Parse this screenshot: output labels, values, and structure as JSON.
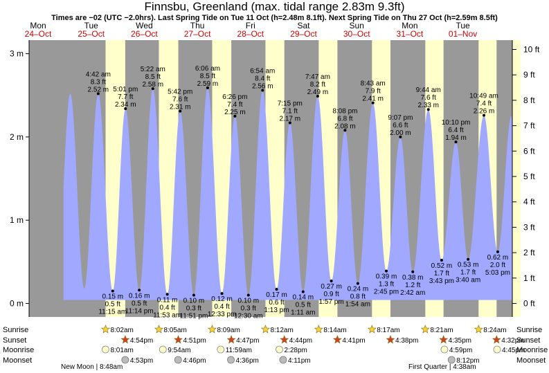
{
  "title": "Finnsbu, Greenland (max. tidal range 2.83m 9.3ft)",
  "subtitle": "Times are −02 (UTC −2.0hrs). Last Spring Tide on Tue 11 Oct (h=2.48m 8.1ft). Next Spring Tide on Thu 27 Oct (h=2.59m 8.5ft)",
  "colors": {
    "night": "#999999",
    "day": "#ffffcc",
    "tide": "#a0a8ff",
    "date_text": "#cc0000",
    "sun_icon": "#f5d33a",
    "sunset_icon": "#cc4422",
    "moonrise_icon": "#ffffcc",
    "moonset_icon": "#bbbbbb"
  },
  "days": [
    {
      "dow": "Mon",
      "date": "24–Oct"
    },
    {
      "dow": "Tue",
      "date": "25–Oct"
    },
    {
      "dow": "Wed",
      "date": "26–Oct"
    },
    {
      "dow": "Thu",
      "date": "27–Oct"
    },
    {
      "dow": "Fri",
      "date": "28–Oct"
    },
    {
      "dow": "Sat",
      "date": "29–Oct"
    },
    {
      "dow": "Sun",
      "date": "30–Oct"
    },
    {
      "dow": "Mon",
      "date": "31–Oct"
    },
    {
      "dow": "Tue",
      "date": "01–Nov"
    }
  ],
  "chart_data": {
    "type": "area",
    "title": "Finnsbu, Greenland (max. tidal range 2.83m 9.3ft)",
    "x_unit": "hours from Mon 24-Oct 00:00",
    "y_unit": "m",
    "ylim": [
      -0.2,
      3.2
    ],
    "left_axis": {
      "ticks": [
        0,
        1,
        2,
        3
      ],
      "labels": [
        "0 m",
        "1 m",
        "2 m",
        "3 m"
      ]
    },
    "right_axis": {
      "ticks_ft": [
        0,
        1,
        2,
        3,
        4,
        5,
        6,
        7,
        8,
        9,
        10
      ],
      "labels": [
        "0 ft",
        "1 ft",
        "2 ft",
        "3 ft",
        "4 ft",
        "5 ft",
        "6 ft",
        "7 ft",
        "8 ft",
        "9 ft",
        "10 ft"
      ]
    },
    "daylight": [
      {
        "sunrise_h": 32.03,
        "sunset_h": 40.9
      },
      {
        "sunrise_h": 56.08,
        "sunset_h": 64.85
      },
      {
        "sunrise_h": 80.15,
        "sunset_h": 88.78
      },
      {
        "sunrise_h": 104.2,
        "sunset_h": 112.73
      },
      {
        "sunrise_h": 128.23,
        "sunset_h": 136.68
      },
      {
        "sunrise_h": 152.28,
        "sunset_h": 160.63
      },
      {
        "sunrise_h": 176.35,
        "sunset_h": 184.58
      },
      {
        "sunrise_h": 200.4,
        "sunset_h": 208.53
      }
    ],
    "extremes": [
      {
        "kind": "high",
        "t": 28.7,
        "m": 2.52,
        "time": "4:42 am",
        "ft": "8.3 ft",
        "h": "2.52 m"
      },
      {
        "kind": "low",
        "t": 35.25,
        "m": 0.15,
        "time": "11:15 am",
        "ft": "0.5 ft",
        "h": "0.15 m"
      },
      {
        "kind": "high",
        "t": 41.02,
        "m": 2.34,
        "time": "5:01 pm",
        "ft": "7.7 ft",
        "h": "2.34 m"
      },
      {
        "kind": "low",
        "t": 47.23,
        "m": 0.16,
        "time": "11:14 pm",
        "ft": "0.5 ft",
        "h": "0.16 m"
      },
      {
        "kind": "high",
        "t": 53.37,
        "m": 2.58,
        "time": "5:22 am",
        "ft": "8.5 ft",
        "h": "2.58 m"
      },
      {
        "kind": "low",
        "t": 59.88,
        "m": 0.11,
        "time": "11:53 am",
        "ft": "0.4 ft",
        "h": "0.11 m"
      },
      {
        "kind": "high",
        "t": 65.7,
        "m": 2.31,
        "time": "5:42 pm",
        "ft": "7.6 ft",
        "h": "2.31 m"
      },
      {
        "kind": "low",
        "t": 71.85,
        "m": 0.1,
        "time": "11:51 pm",
        "ft": "0.3 ft",
        "h": "0.10 m"
      },
      {
        "kind": "high",
        "t": 78.1,
        "m": 2.59,
        "time": "6:06 am",
        "ft": "8.5 ft",
        "h": "2.59 m"
      },
      {
        "kind": "low",
        "t": 84.55,
        "m": 0.12,
        "time": "12:33 pm",
        "ft": "0.4 ft",
        "h": "0.12 m"
      },
      {
        "kind": "high",
        "t": 90.43,
        "m": 2.25,
        "time": "6:26 pm",
        "ft": "7.4 ft",
        "h": "2.25 m"
      },
      {
        "kind": "low",
        "t": 96.5,
        "m": 0.1,
        "time": "12:30 am",
        "ft": "0.3 ft",
        "h": "0.10 m"
      },
      {
        "kind": "high",
        "t": 102.9,
        "m": 2.56,
        "time": "6:54 am",
        "ft": "8.4 ft",
        "h": "2.56 m"
      },
      {
        "kind": "low",
        "t": 109.22,
        "m": 0.17,
        "time": "1:13 pm",
        "ft": "0.6 ft",
        "h": "0.17 m"
      },
      {
        "kind": "high",
        "t": 115.25,
        "m": 2.17,
        "time": "7:15 pm",
        "ft": "7.1 ft",
        "h": "2.17 m"
      },
      {
        "kind": "low",
        "t": 121.18,
        "m": 0.14,
        "time": "1:11 am",
        "ft": "0.5 ft",
        "h": "0.14 m"
      },
      {
        "kind": "high",
        "t": 127.78,
        "m": 2.49,
        "time": "7:47 am",
        "ft": "8.2 ft",
        "h": "2.49 m"
      },
      {
        "kind": "low",
        "t": 133.95,
        "m": 0.27,
        "time": "1:57 pm",
        "ft": "0.9 ft",
        "h": "0.27 m"
      },
      {
        "kind": "high",
        "t": 140.13,
        "m": 2.08,
        "time": "8:08 pm",
        "ft": "6.8 ft",
        "h": "2.08 m"
      },
      {
        "kind": "low",
        "t": 145.9,
        "m": 0.24,
        "time": "1:54 am",
        "ft": "0.8 ft",
        "h": "0.24 m"
      },
      {
        "kind": "high",
        "t": 152.72,
        "m": 2.41,
        "time": "8:43 am",
        "ft": "7.9 ft",
        "h": "2.41 m"
      },
      {
        "kind": "low",
        "t": 158.75,
        "m": 0.39,
        "time": "2:45 pm",
        "ft": "1.3 ft",
        "h": "0.39 m"
      },
      {
        "kind": "high",
        "t": 165.12,
        "m": 2.0,
        "time": "9:07 pm",
        "ft": "6.6 ft",
        "h": "2.00 m"
      },
      {
        "kind": "low",
        "t": 170.7,
        "m": 0.38,
        "time": "2:42 am",
        "ft": "1.2 ft",
        "h": "0.38 m"
      },
      {
        "kind": "high",
        "t": 177.73,
        "m": 2.33,
        "time": "9:44 am",
        "ft": "7.6 ft",
        "h": "2.33 m"
      },
      {
        "kind": "low",
        "t": 183.72,
        "m": 0.52,
        "time": "3:43 pm",
        "ft": "1.7 ft",
        "h": "0.52 m"
      },
      {
        "kind": "high",
        "t": 190.17,
        "m": 1.94,
        "time": "10:10 pm",
        "ft": "6.4 ft",
        "h": "1.94 m"
      },
      {
        "kind": "low",
        "t": 195.67,
        "m": 0.53,
        "time": "3:40 am",
        "ft": "1.7 ft",
        "h": "0.53 m"
      },
      {
        "kind": "high",
        "t": 202.82,
        "m": 2.26,
        "time": "10:49 am",
        "ft": "7.4 ft",
        "h": "2.26 m"
      },
      {
        "kind": "low",
        "t": 209.05,
        "m": 0.62,
        "time": "5:03 pm",
        "ft": "2.0 ft",
        "h": "0.62 m"
      }
    ],
    "rows": [
      {
        "key": "sunrise",
        "label": "Sunrise",
        "events": [
          {
            "t": 32.03,
            "text": "8:02am"
          },
          {
            "t": 56.08,
            "text": "8:05am"
          },
          {
            "t": 80.15,
            "text": "8:09am"
          },
          {
            "t": 104.2,
            "text": "8:12am"
          },
          {
            "t": 128.23,
            "text": "8:14am"
          },
          {
            "t": 152.28,
            "text": "8:17am"
          },
          {
            "t": 176.35,
            "text": "8:21am"
          },
          {
            "t": 200.4,
            "text": "8:24am"
          }
        ]
      },
      {
        "key": "sunset",
        "label": "Sunset",
        "events": [
          {
            "t": 40.9,
            "text": "4:54pm"
          },
          {
            "t": 64.85,
            "text": "4:51pm"
          },
          {
            "t": 88.78,
            "text": "4:47pm"
          },
          {
            "t": 112.73,
            "text": "4:44pm"
          },
          {
            "t": 136.68,
            "text": "4:41pm"
          },
          {
            "t": 160.63,
            "text": "4:38pm"
          },
          {
            "t": 184.58,
            "text": "4:35pm"
          },
          {
            "t": 208.53,
            "text": "4:32pm"
          }
        ]
      },
      {
        "key": "moonrise",
        "label": "Moonrise",
        "events": [
          {
            "t": 32.02,
            "text": "8:01am"
          },
          {
            "t": 57.9,
            "text": "9:54am"
          },
          {
            "t": 83.98,
            "text": "11:59am"
          },
          {
            "t": 110.47,
            "text": "2:28pm"
          },
          {
            "t": 184.98,
            "text": "4:59pm"
          },
          {
            "t": 208.75,
            "text": "4:45pm"
          }
        ]
      },
      {
        "key": "moonset",
        "label": "Moonset",
        "events": [
          {
            "t": 40.88,
            "text": "4:53pm"
          },
          {
            "t": 64.77,
            "text": "4:46pm"
          },
          {
            "t": 88.6,
            "text": "4:36pm"
          },
          {
            "t": 112.18,
            "text": "4:11pm"
          },
          {
            "t": 188.2,
            "text": "8:12pm"
          }
        ]
      }
    ],
    "moon_phases": [
      {
        "t": 30.8,
        "text": "New Moon | 8:48am"
      },
      {
        "t": 220.63,
        "text": "First Quarter | 4:38am"
      }
    ]
  }
}
